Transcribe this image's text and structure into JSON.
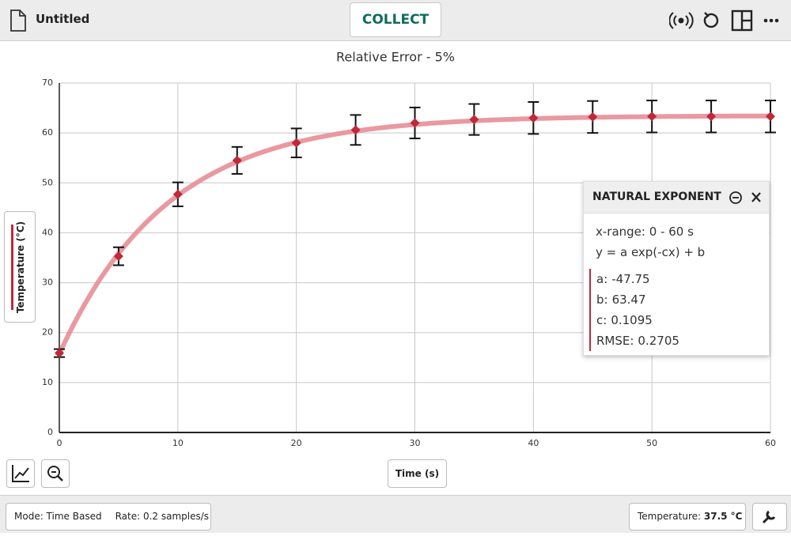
{
  "header": {
    "file_name": "Untitled",
    "collect_button": "COLLECT"
  },
  "chart_data": {
    "type": "scatter",
    "title": "Relative Error - 5%",
    "x_label": "Time (s)",
    "y_label": "Temperature (°C)",
    "x": [
      0,
      5,
      10,
      15,
      20,
      25,
      30,
      35,
      40,
      45,
      50,
      55,
      60
    ],
    "values": [
      15.9,
      35.3,
      47.7,
      54.5,
      58.0,
      60.6,
      62.0,
      62.7,
      63.0,
      63.2,
      63.3,
      63.3,
      63.3
    ],
    "errors": [
      0.8,
      1.8,
      2.4,
      2.7,
      2.9,
      3.0,
      3.1,
      3.1,
      3.2,
      3.2,
      3.2,
      3.2,
      3.2
    ],
    "color": "#c0293a",
    "fit_color": "#e8939b",
    "xlim": [
      0,
      60
    ],
    "ylim": [
      0,
      70
    ],
    "xticks": [
      0,
      10,
      20,
      30,
      40,
      50,
      60
    ],
    "yticks": [
      0,
      10,
      20,
      30,
      40,
      50,
      60,
      70
    ],
    "grid": true,
    "fit": {
      "title": "NATURAL EXPONENT",
      "x_range": "x-range: 0 - 60 s",
      "equation": "y = a exp(-cx) + b",
      "params": [
        {
          "label": "a:",
          "value": -47.75
        },
        {
          "label": "b:",
          "value": 63.47
        },
        {
          "label": "c:",
          "value": 0.1095
        },
        {
          "label": "RMSE:",
          "value": 0.2705
        }
      ]
    }
  },
  "footer": {
    "mode": "Mode: Time Based",
    "rate": "Rate: 0.2 samples/s",
    "sensor_label": "Temperature:",
    "sensor_reading": "37.5 °C"
  }
}
